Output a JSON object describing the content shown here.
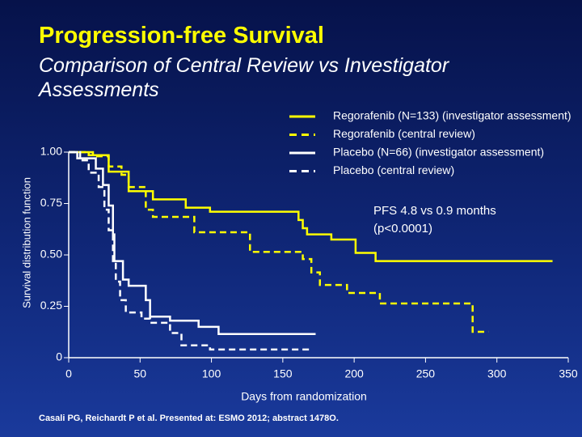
{
  "chart_data": {
    "type": "line",
    "title": "Progression-free Survival",
    "subtitle": "Comparison of Central Review vs Investigator Assessments",
    "xlabel": "Days from randomization",
    "ylabel": "Survival distribution function",
    "annotations": [
      "PFS 4.8 vs 0.9 months",
      "(p<0.0001)"
    ],
    "footnote": "Casali PG, Reichardt P et al. Presented at: ESMO 2012; abstract 1478O.",
    "xlim": [
      0,
      350
    ],
    "ylim": [
      0,
      1
    ],
    "xticks": [
      0,
      50,
      100,
      150,
      200,
      250,
      300,
      350
    ],
    "yticks": [
      0,
      0.25,
      {
        "value": 0.5,
        "label": "0.50"
      },
      0.75,
      {
        "value": 1,
        "label": "1.00"
      }
    ],
    "series": [
      {
        "name": "Regorafenib (N=133) (investigator assessment)",
        "color": "#ffff00",
        "dashed": false,
        "x": [
          0,
          14,
          14,
          28,
          28,
          42,
          42,
          59,
          59,
          82,
          82,
          99,
          99,
          161,
          161,
          164,
          164,
          167,
          167,
          184,
          184,
          201,
          201,
          215,
          215,
          339
        ],
        "values": [
          1,
          1,
          0.985,
          0.985,
          0.905,
          0.905,
          0.81,
          0.81,
          0.77,
          0.77,
          0.73,
          0.73,
          0.71,
          0.71,
          0.67,
          0.67,
          0.63,
          0.63,
          0.6,
          0.6,
          0.575,
          0.575,
          0.51,
          0.51,
          0.47,
          0.47
        ]
      },
      {
        "name": "Regorafenib (central review)",
        "color": "#ffff00",
        "dashed": true,
        "x": [
          0,
          17,
          17,
          28,
          28,
          37,
          37,
          42,
          42,
          54,
          54,
          59,
          59,
          88,
          88,
          127,
          127,
          164,
          164,
          170,
          170,
          176,
          176,
          195,
          195,
          218,
          218,
          283,
          283,
          294
        ],
        "values": [
          1,
          1,
          0.98,
          0.98,
          0.93,
          0.93,
          0.89,
          0.89,
          0.83,
          0.83,
          0.72,
          0.72,
          0.685,
          0.685,
          0.61,
          0.61,
          0.515,
          0.515,
          0.48,
          0.48,
          0.415,
          0.415,
          0.354,
          0.354,
          0.315,
          0.315,
          0.264,
          0.264,
          0.126,
          0.126
        ]
      },
      {
        "name": "Placebo (N=66) (investigator assessment)",
        "color": "#ffffff",
        "dashed": false,
        "x": [
          0,
          6,
          6,
          19,
          19,
          24,
          24,
          28,
          28,
          31,
          31,
          32,
          32,
          38,
          38,
          42,
          42,
          54,
          54,
          57,
          57,
          71,
          71,
          91,
          91,
          105,
          105,
          173
        ],
        "values": [
          1,
          1,
          0.97,
          0.97,
          0.92,
          0.92,
          0.84,
          0.84,
          0.74,
          0.74,
          0.6,
          0.6,
          0.47,
          0.47,
          0.38,
          0.38,
          0.35,
          0.35,
          0.28,
          0.28,
          0.2,
          0.2,
          0.18,
          0.18,
          0.15,
          0.15,
          0.115,
          0.115
        ]
      },
      {
        "name": "Placebo (central review)",
        "color": "#ffffff",
        "dashed": true,
        "x": [
          0,
          8,
          8,
          14,
          14,
          21,
          21,
          25,
          25,
          28,
          28,
          31,
          31,
          33,
          33,
          36,
          36,
          40,
          40,
          51,
          51,
          57,
          57,
          71,
          71,
          79,
          79,
          99,
          99,
          170
        ],
        "values": [
          1,
          1,
          0.96,
          0.96,
          0.9,
          0.9,
          0.83,
          0.83,
          0.72,
          0.72,
          0.62,
          0.62,
          0.47,
          0.47,
          0.37,
          0.37,
          0.28,
          0.28,
          0.22,
          0.22,
          0.19,
          0.19,
          0.17,
          0.17,
          0.12,
          0.12,
          0.06,
          0.06,
          0.04,
          0.04
        ]
      }
    ]
  }
}
